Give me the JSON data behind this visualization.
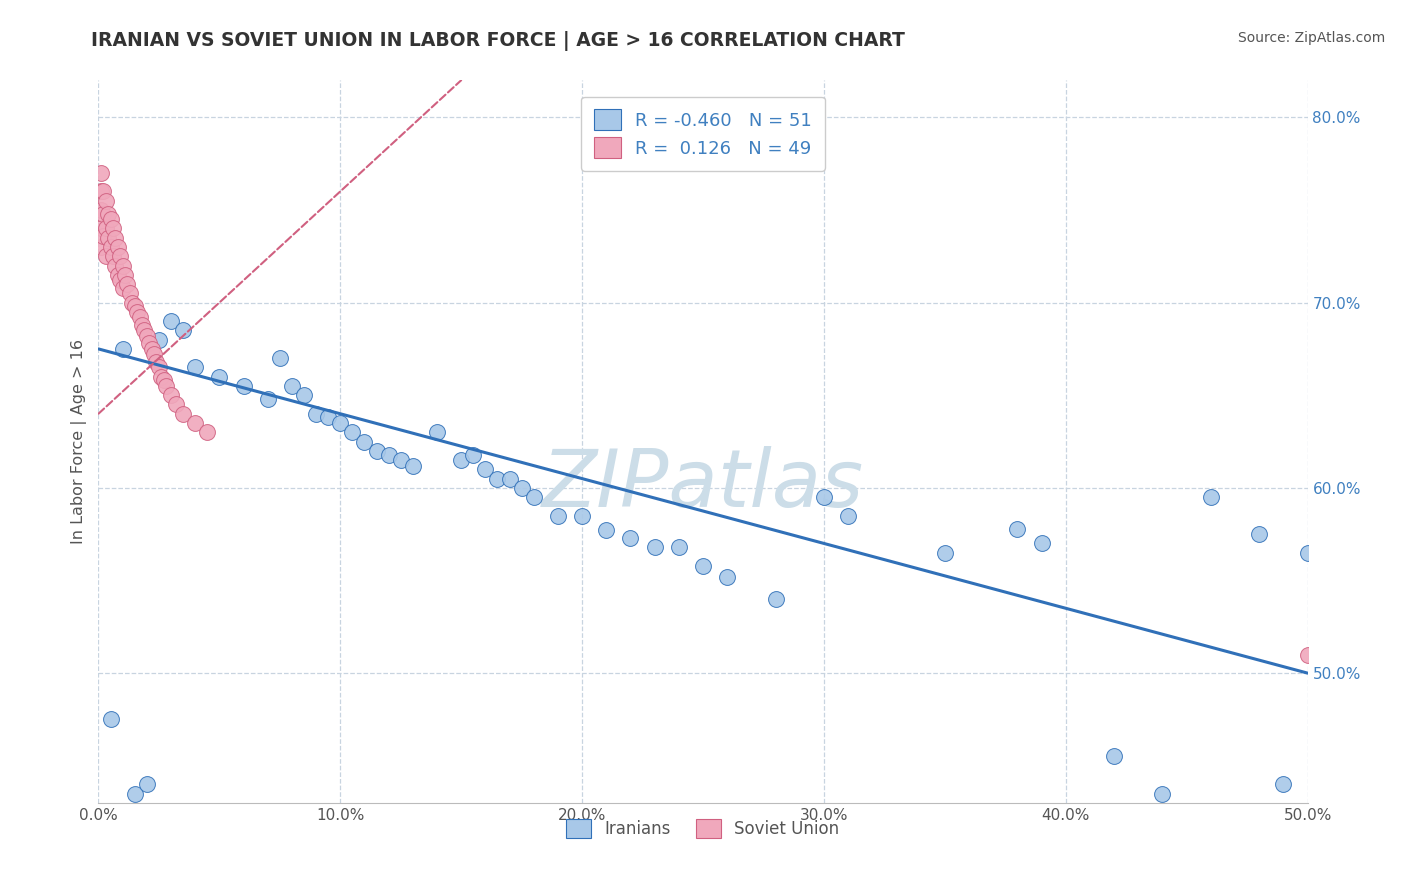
{
  "title": "IRANIAN VS SOVIET UNION IN LABOR FORCE | AGE > 16 CORRELATION CHART",
  "source_text": "Source: ZipAtlas.com",
  "ylabel": "In Labor Force | Age > 16",
  "xlim": [
    0.0,
    0.5
  ],
  "ylim": [
    0.43,
    0.82
  ],
  "xticks": [
    0.0,
    0.1,
    0.2,
    0.3,
    0.4,
    0.5
  ],
  "xtick_labels": [
    "0.0%",
    "10.0%",
    "20.0%",
    "30.0%",
    "40.0%",
    "50.0%"
  ],
  "yticks": [
    0.5,
    0.6,
    0.7,
    0.8
  ],
  "ytick_labels": [
    "50.0%",
    "60.0%",
    "70.0%",
    "80.0%"
  ],
  "r1": -0.46,
  "n1": 51,
  "r2": 0.126,
  "n2": 49,
  "color_blue": "#a8c8e8",
  "color_pink": "#f0a8bc",
  "color_line_blue": "#3070b8",
  "color_line_pink": "#d06080",
  "watermark": "ZIPatlas",
  "watermark_color": "#ccdde8",
  "background_color": "#ffffff",
  "grid_color": "#c8d4e0",
  "title_color": "#333333",
  "axis_label_color": "#555555",
  "ytick_color": "#4080c0",
  "xtick_color": "#555555",
  "blue_scatter_x": [
    0.005,
    0.01,
    0.025,
    0.03,
    0.035,
    0.04,
    0.05,
    0.06,
    0.07,
    0.075,
    0.08,
    0.085,
    0.09,
    0.095,
    0.1,
    0.105,
    0.11,
    0.115,
    0.12,
    0.125,
    0.13,
    0.14,
    0.15,
    0.155,
    0.16,
    0.165,
    0.17,
    0.175,
    0.18,
    0.19,
    0.2,
    0.21,
    0.22,
    0.23,
    0.24,
    0.25,
    0.26,
    0.28,
    0.3,
    0.31,
    0.35,
    0.38,
    0.39,
    0.42,
    0.44,
    0.46,
    0.48,
    0.49,
    0.5,
    0.015,
    0.02
  ],
  "blue_scatter_y": [
    0.475,
    0.675,
    0.68,
    0.69,
    0.685,
    0.665,
    0.66,
    0.655,
    0.648,
    0.67,
    0.655,
    0.65,
    0.64,
    0.638,
    0.635,
    0.63,
    0.625,
    0.62,
    0.618,
    0.615,
    0.612,
    0.63,
    0.615,
    0.618,
    0.61,
    0.605,
    0.605,
    0.6,
    0.595,
    0.585,
    0.585,
    0.577,
    0.573,
    0.568,
    0.568,
    0.558,
    0.552,
    0.54,
    0.595,
    0.585,
    0.565,
    0.578,
    0.57,
    0.455,
    0.435,
    0.595,
    0.575,
    0.44,
    0.565,
    0.435,
    0.44
  ],
  "pink_scatter_x": [
    0.001,
    0.001,
    0.001,
    0.001,
    0.001,
    0.002,
    0.002,
    0.002,
    0.003,
    0.003,
    0.003,
    0.004,
    0.004,
    0.005,
    0.005,
    0.006,
    0.006,
    0.007,
    0.007,
    0.008,
    0.008,
    0.009,
    0.009,
    0.01,
    0.01,
    0.011,
    0.012,
    0.013,
    0.014,
    0.015,
    0.016,
    0.017,
    0.018,
    0.019,
    0.02,
    0.021,
    0.022,
    0.023,
    0.024,
    0.025,
    0.026,
    0.027,
    0.028,
    0.03,
    0.032,
    0.035,
    0.04,
    0.045,
    0.5
  ],
  "pink_scatter_y": [
    0.77,
    0.76,
    0.75,
    0.74,
    0.73,
    0.76,
    0.748,
    0.736,
    0.755,
    0.74,
    0.725,
    0.748,
    0.735,
    0.745,
    0.73,
    0.74,
    0.725,
    0.735,
    0.72,
    0.73,
    0.715,
    0.725,
    0.712,
    0.72,
    0.708,
    0.715,
    0.71,
    0.705,
    0.7,
    0.698,
    0.695,
    0.692,
    0.688,
    0.685,
    0.682,
    0.678,
    0.675,
    0.672,
    0.668,
    0.665,
    0.66,
    0.658,
    0.655,
    0.65,
    0.645,
    0.64,
    0.635,
    0.63,
    0.51
  ],
  "blue_line_x0": 0.0,
  "blue_line_y0": 0.675,
  "blue_line_x1": 0.5,
  "blue_line_y1": 0.5,
  "pink_line_x0": 0.0,
  "pink_line_y0": 0.64,
  "pink_line_x1": 0.15,
  "pink_line_y1": 0.82
}
